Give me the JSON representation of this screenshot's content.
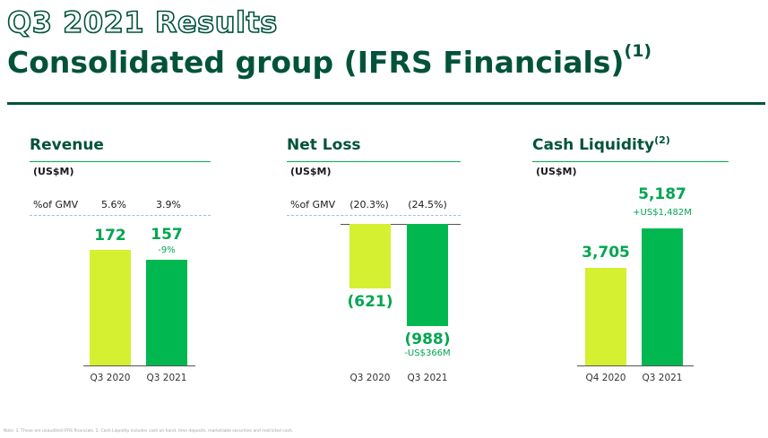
{
  "header": {
    "title_line1": "Q3 2021 Results",
    "title_line2": "Consolidated group (IFRS Financials)",
    "title_line2_sup": "(1)"
  },
  "colors": {
    "dark_green": "#00533a",
    "light_bar": "#d4f031",
    "dark_bar": "#00b84f",
    "accent_text": "#00a651"
  },
  "chart_data": [
    {
      "type": "bar",
      "title": "Revenue",
      "unit": "(US$M)",
      "gmv_label": "%of GMV",
      "gmv_values": [
        "5.6%",
        "3.9%"
      ],
      "categories": [
        "Q3 2020",
        "Q3 2021"
      ],
      "values": [
        172,
        157
      ],
      "value_labels": [
        "172",
        "157"
      ],
      "change_label": "-9%"
    },
    {
      "type": "bar",
      "title": "Net Loss",
      "unit": "(US$M)",
      "gmv_label": "%of GMV",
      "gmv_values": [
        "(20.3%)",
        "(24.5%)"
      ],
      "categories": [
        "Q3 2020",
        "Q3 2021"
      ],
      "values": [
        -621,
        -988
      ],
      "value_labels": [
        "(621)",
        "(988)"
      ],
      "change_label": "-US$366M"
    },
    {
      "type": "bar",
      "title": "Cash Liquidity",
      "title_sup": "(2)",
      "unit": "(US$M)",
      "categories": [
        "Q4 2020",
        "Q3 2021"
      ],
      "values": [
        3705,
        5187
      ],
      "value_labels": [
        "3,705",
        "5,187"
      ],
      "change_label": "+US$1,482M"
    }
  ],
  "footnote": "Note: 1. These are unaudited IFRS financials. 2. Cash Liquidity includes cash on hand, time deposits, marketable securities and restricted cash."
}
